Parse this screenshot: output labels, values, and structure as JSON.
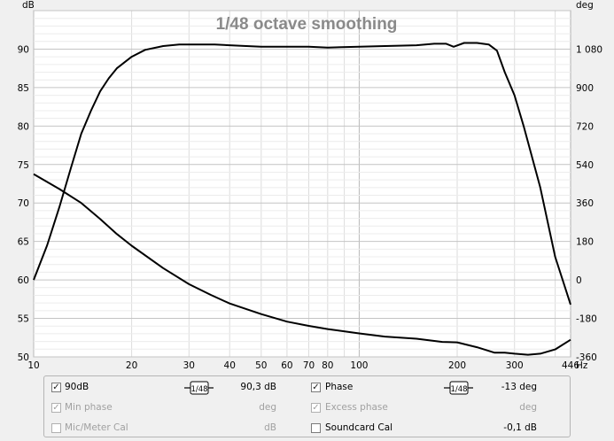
{
  "chart_data": {
    "type": "line",
    "title": "1/48 octave smoothing",
    "xlabel": "Hz",
    "ylabel": "dB",
    "y2label": "deg",
    "x_scale": "log",
    "xlim": [
      10,
      446
    ],
    "ylim": [
      50,
      95
    ],
    "y2lim": [
      -360,
      1260
    ],
    "x_ticks": [
      "10",
      "20",
      "30",
      "40",
      "50",
      "60",
      "70",
      "80",
      "100",
      "200",
      "300",
      "446"
    ],
    "y_ticks": [
      "50",
      "55",
      "60",
      "65",
      "70",
      "75",
      "80",
      "85",
      "90"
    ],
    "y2_ticks": [
      "-360",
      "-180",
      "0",
      "180",
      "360",
      "540",
      "720",
      "900",
      "1 080"
    ],
    "grid": true,
    "series": [
      {
        "name": "90dB",
        "axis": "left",
        "x": [
          10,
          11,
          12,
          13,
          14,
          15,
          16,
          17,
          18,
          20,
          22,
          25,
          28,
          32,
          36,
          40,
          45,
          50,
          60,
          70,
          80,
          100,
          120,
          150,
          170,
          185,
          195,
          210,
          230,
          250,
          265,
          280,
          300,
          320,
          360,
          400,
          446
        ],
        "values": [
          60,
          64.5,
          69.5,
          74.5,
          79,
          82,
          84.5,
          86.2,
          87.5,
          89,
          89.9,
          90.4,
          90.6,
          90.6,
          90.6,
          90.5,
          90.4,
          90.3,
          90.3,
          90.3,
          90.2,
          90.3,
          90.4,
          90.5,
          90.7,
          90.7,
          90.3,
          90.8,
          90.8,
          90.6,
          89.8,
          87,
          84,
          80,
          72,
          63,
          56.8
        ]
      },
      {
        "name": "Phase",
        "axis": "right",
        "x": [
          10,
          12,
          14,
          16,
          18,
          20,
          25,
          30,
          35,
          40,
          50,
          60,
          70,
          80,
          100,
          120,
          150,
          180,
          200,
          230,
          260,
          280,
          300,
          330,
          360,
          400,
          446
        ],
        "values": [
          495,
          425,
          360,
          285,
          215,
          160,
          55,
          -20,
          -70,
          -110,
          -160,
          -195,
          -215,
          -230,
          -250,
          -265,
          -275,
          -290,
          -292,
          -315,
          -340,
          -340,
          -345,
          -350,
          -345,
          -325,
          -280
        ]
      }
    ]
  },
  "legend": {
    "magnitude": {
      "label": "90dB",
      "checked": true,
      "smoothing": "1/48",
      "value": "90,3 dB"
    },
    "phase": {
      "label": "Phase",
      "checked": true,
      "smoothing": "1/48",
      "value": "-13 deg"
    },
    "min_phase": {
      "label": "Min phase",
      "checked": true,
      "value": "deg"
    },
    "excess_phase": {
      "label": "Excess phase",
      "checked": true,
      "value": "deg"
    },
    "mic_cal": {
      "label": "Mic/Meter Cal",
      "checked": false,
      "value": "dB"
    },
    "soundcard_cal": {
      "label": "Soundcard Cal",
      "checked": false,
      "value": "-0,1 dB"
    }
  }
}
